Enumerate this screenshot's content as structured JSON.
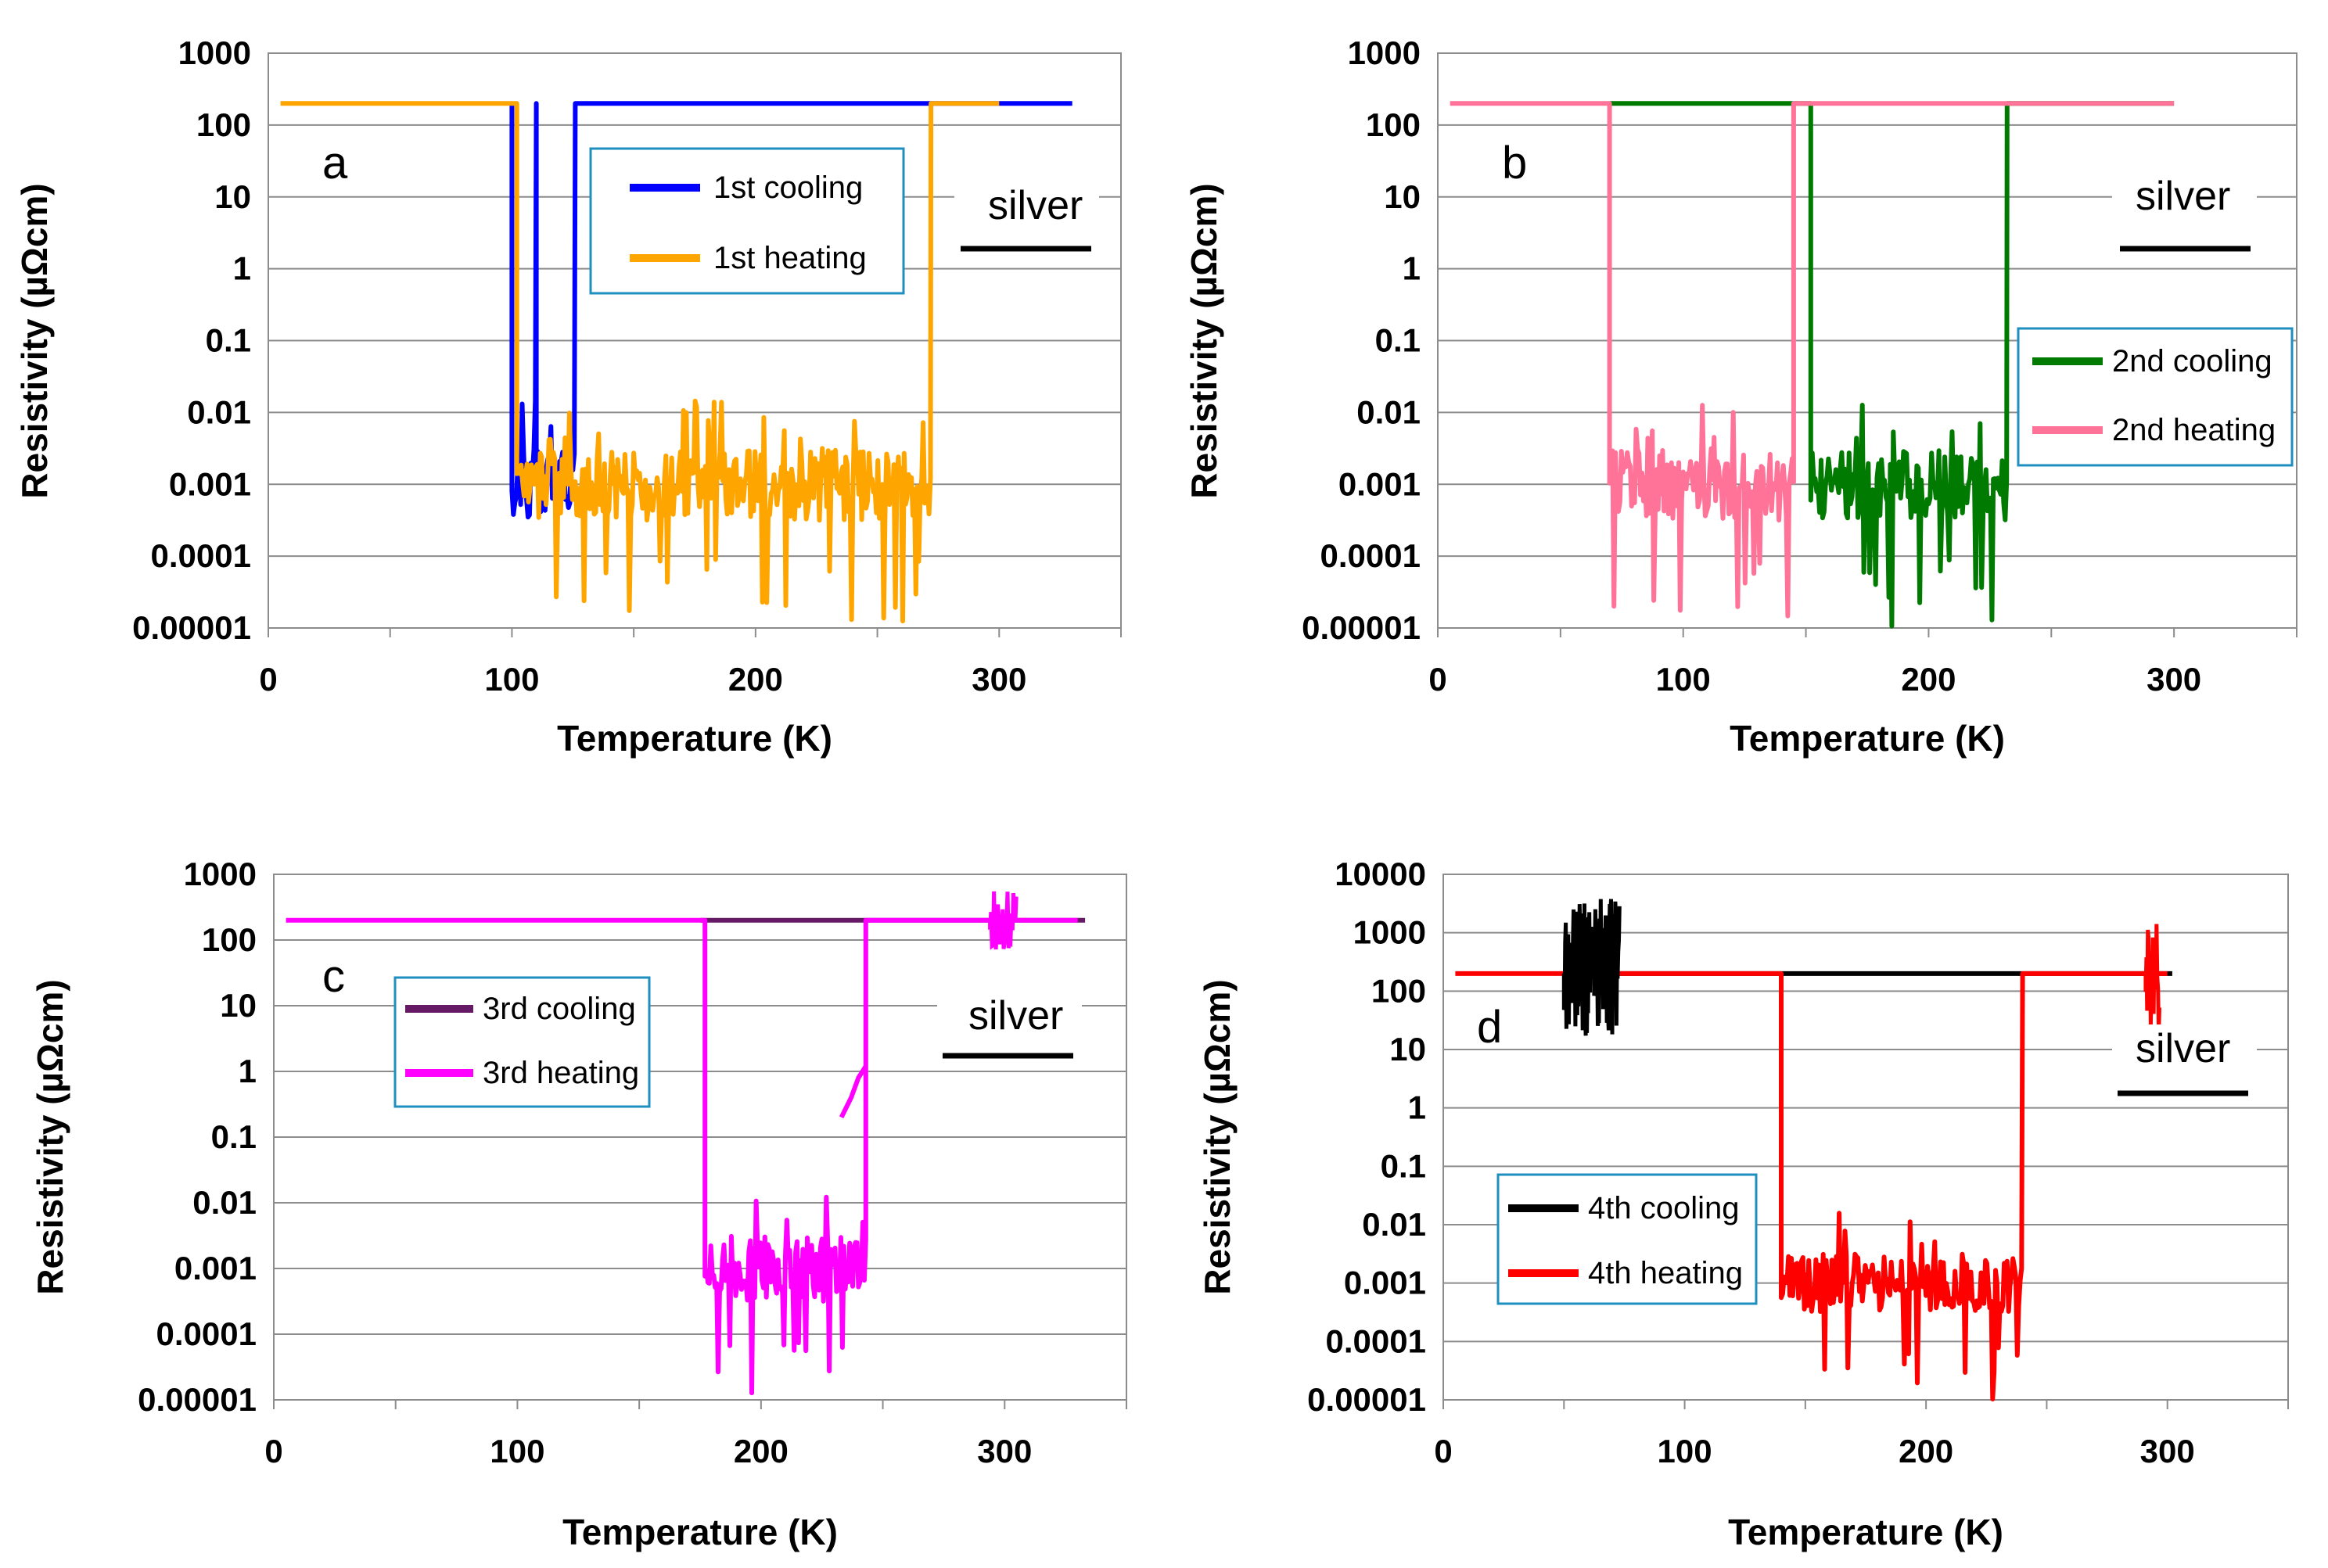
{
  "colors": {
    "blue": "#0000ff",
    "orange": "#ffa500",
    "green": "#007a00",
    "pink": "#ff7399",
    "purple": "#661a66",
    "magenta": "#ff00ff",
    "black": "#000000",
    "red": "#ff0000",
    "grid": "#8c8c8c",
    "legend_border": "#1e8fbf"
  },
  "chart_data": [
    {
      "type": "line",
      "panel": "a",
      "xlabel": "Temperature (K)",
      "ylabel": "Resistivity (µΩcm)",
      "xlim": [
        0,
        350
      ],
      "ylim": [
        1e-05,
        1000
      ],
      "yscale": "log",
      "xticks": [
        "0",
        "100",
        "200",
        "300"
      ],
      "yticks": [
        "0.00001",
        "0.0001",
        "0.001",
        "0.01",
        "0.1",
        "1",
        "10",
        "100",
        "1000"
      ],
      "annotation": "silver",
      "legend_placement": "top-center",
      "series": [
        {
          "name": "1st cooling",
          "color": "blue",
          "normal_resistivity": 200,
          "x_range": [
            100,
            330
          ],
          "zero_resistance_windows": [
            [
              100,
              110
            ],
            [
              110,
              126
            ]
          ],
          "noise_floor": 0.001
        },
        {
          "name": "1st heating",
          "color": "orange",
          "normal_resistivity": 200,
          "x_range": [
            5,
            300
          ],
          "zero_resistance_windows": [
            [
              102,
              272
            ]
          ],
          "noise_floor": 0.001
        }
      ]
    },
    {
      "type": "line",
      "panel": "b",
      "xlabel": "Temperature (K)",
      "ylabel": "Resistivity (µΩcm)",
      "xlim": [
        0,
        350
      ],
      "ylim": [
        1e-05,
        1000
      ],
      "yscale": "log",
      "xticks": [
        "0",
        "100",
        "200",
        "300"
      ],
      "yticks": [
        "0.00001",
        "0.0001",
        "0.001",
        "0.01",
        "0.1",
        "1",
        "10",
        "100",
        "1000"
      ],
      "annotation": "silver",
      "legend_placement": "right",
      "series": [
        {
          "name": "2nd cooling",
          "color": "green",
          "normal_resistivity": 200,
          "x_range": [
            70,
            300
          ],
          "zero_resistance_windows": [
            [
              152,
              232
            ]
          ],
          "noise_floor": 0.001
        },
        {
          "name": "2nd heating",
          "color": "pink",
          "normal_resistivity": 200,
          "x_range": [
            5,
            300
          ],
          "zero_resistance_windows": [
            [
              70,
              145
            ]
          ],
          "noise_floor": 0.001
        }
      ]
    },
    {
      "type": "line",
      "panel": "c",
      "xlabel": "Temperature (K)",
      "ylabel": "Resistivity (µΩcm)",
      "xlim": [
        0,
        350
      ],
      "ylim": [
        1e-05,
        1000
      ],
      "yscale": "log",
      "xticks": [
        "0",
        "100",
        "200",
        "300"
      ],
      "yticks": [
        "0.00001",
        "0.0001",
        "0.001",
        "0.01",
        "0.1",
        "1",
        "10",
        "100",
        "1000"
      ],
      "annotation": "silver",
      "legend_placement": "left",
      "series": [
        {
          "name": "3rd cooling",
          "color": "purple",
          "normal_resistivity": 200,
          "x_range": [
            175,
            333
          ],
          "zero_resistance_windows": [],
          "noise_floor": 0.001
        },
        {
          "name": "3rd heating",
          "color": "magenta",
          "normal_resistivity": 200,
          "x_range": [
            5,
            330
          ],
          "zero_resistance_windows": [
            [
              177,
              243
            ]
          ],
          "noise_floor": 0.001
        }
      ]
    },
    {
      "type": "line",
      "panel": "d",
      "xlabel": "Temperature (K)",
      "ylabel": "Resistivity (µΩcm)",
      "xlim": [
        0,
        350
      ],
      "ylim": [
        1e-05,
        10000
      ],
      "yscale": "log",
      "xticks": [
        "0",
        "100",
        "200",
        "300"
      ],
      "yticks": [
        "0.00001",
        "0.0001",
        "0.001",
        "0.01",
        "0.1",
        "1",
        "10",
        "100",
        "1000",
        "10000"
      ],
      "annotation": "silver",
      "legend_placement": "bottom-left",
      "series": [
        {
          "name": "4th cooling",
          "color": "black",
          "normal_resistivity": 200,
          "x_range": [
            50,
            302
          ],
          "zero_resistance_windows": [],
          "noise_floor": 0.001
        },
        {
          "name": "4th heating",
          "color": "red",
          "normal_resistivity": 200,
          "x_range": [
            5,
            300
          ],
          "zero_resistance_windows": [
            [
              140,
              240
            ]
          ],
          "noise_floor": 0.001
        }
      ]
    }
  ]
}
